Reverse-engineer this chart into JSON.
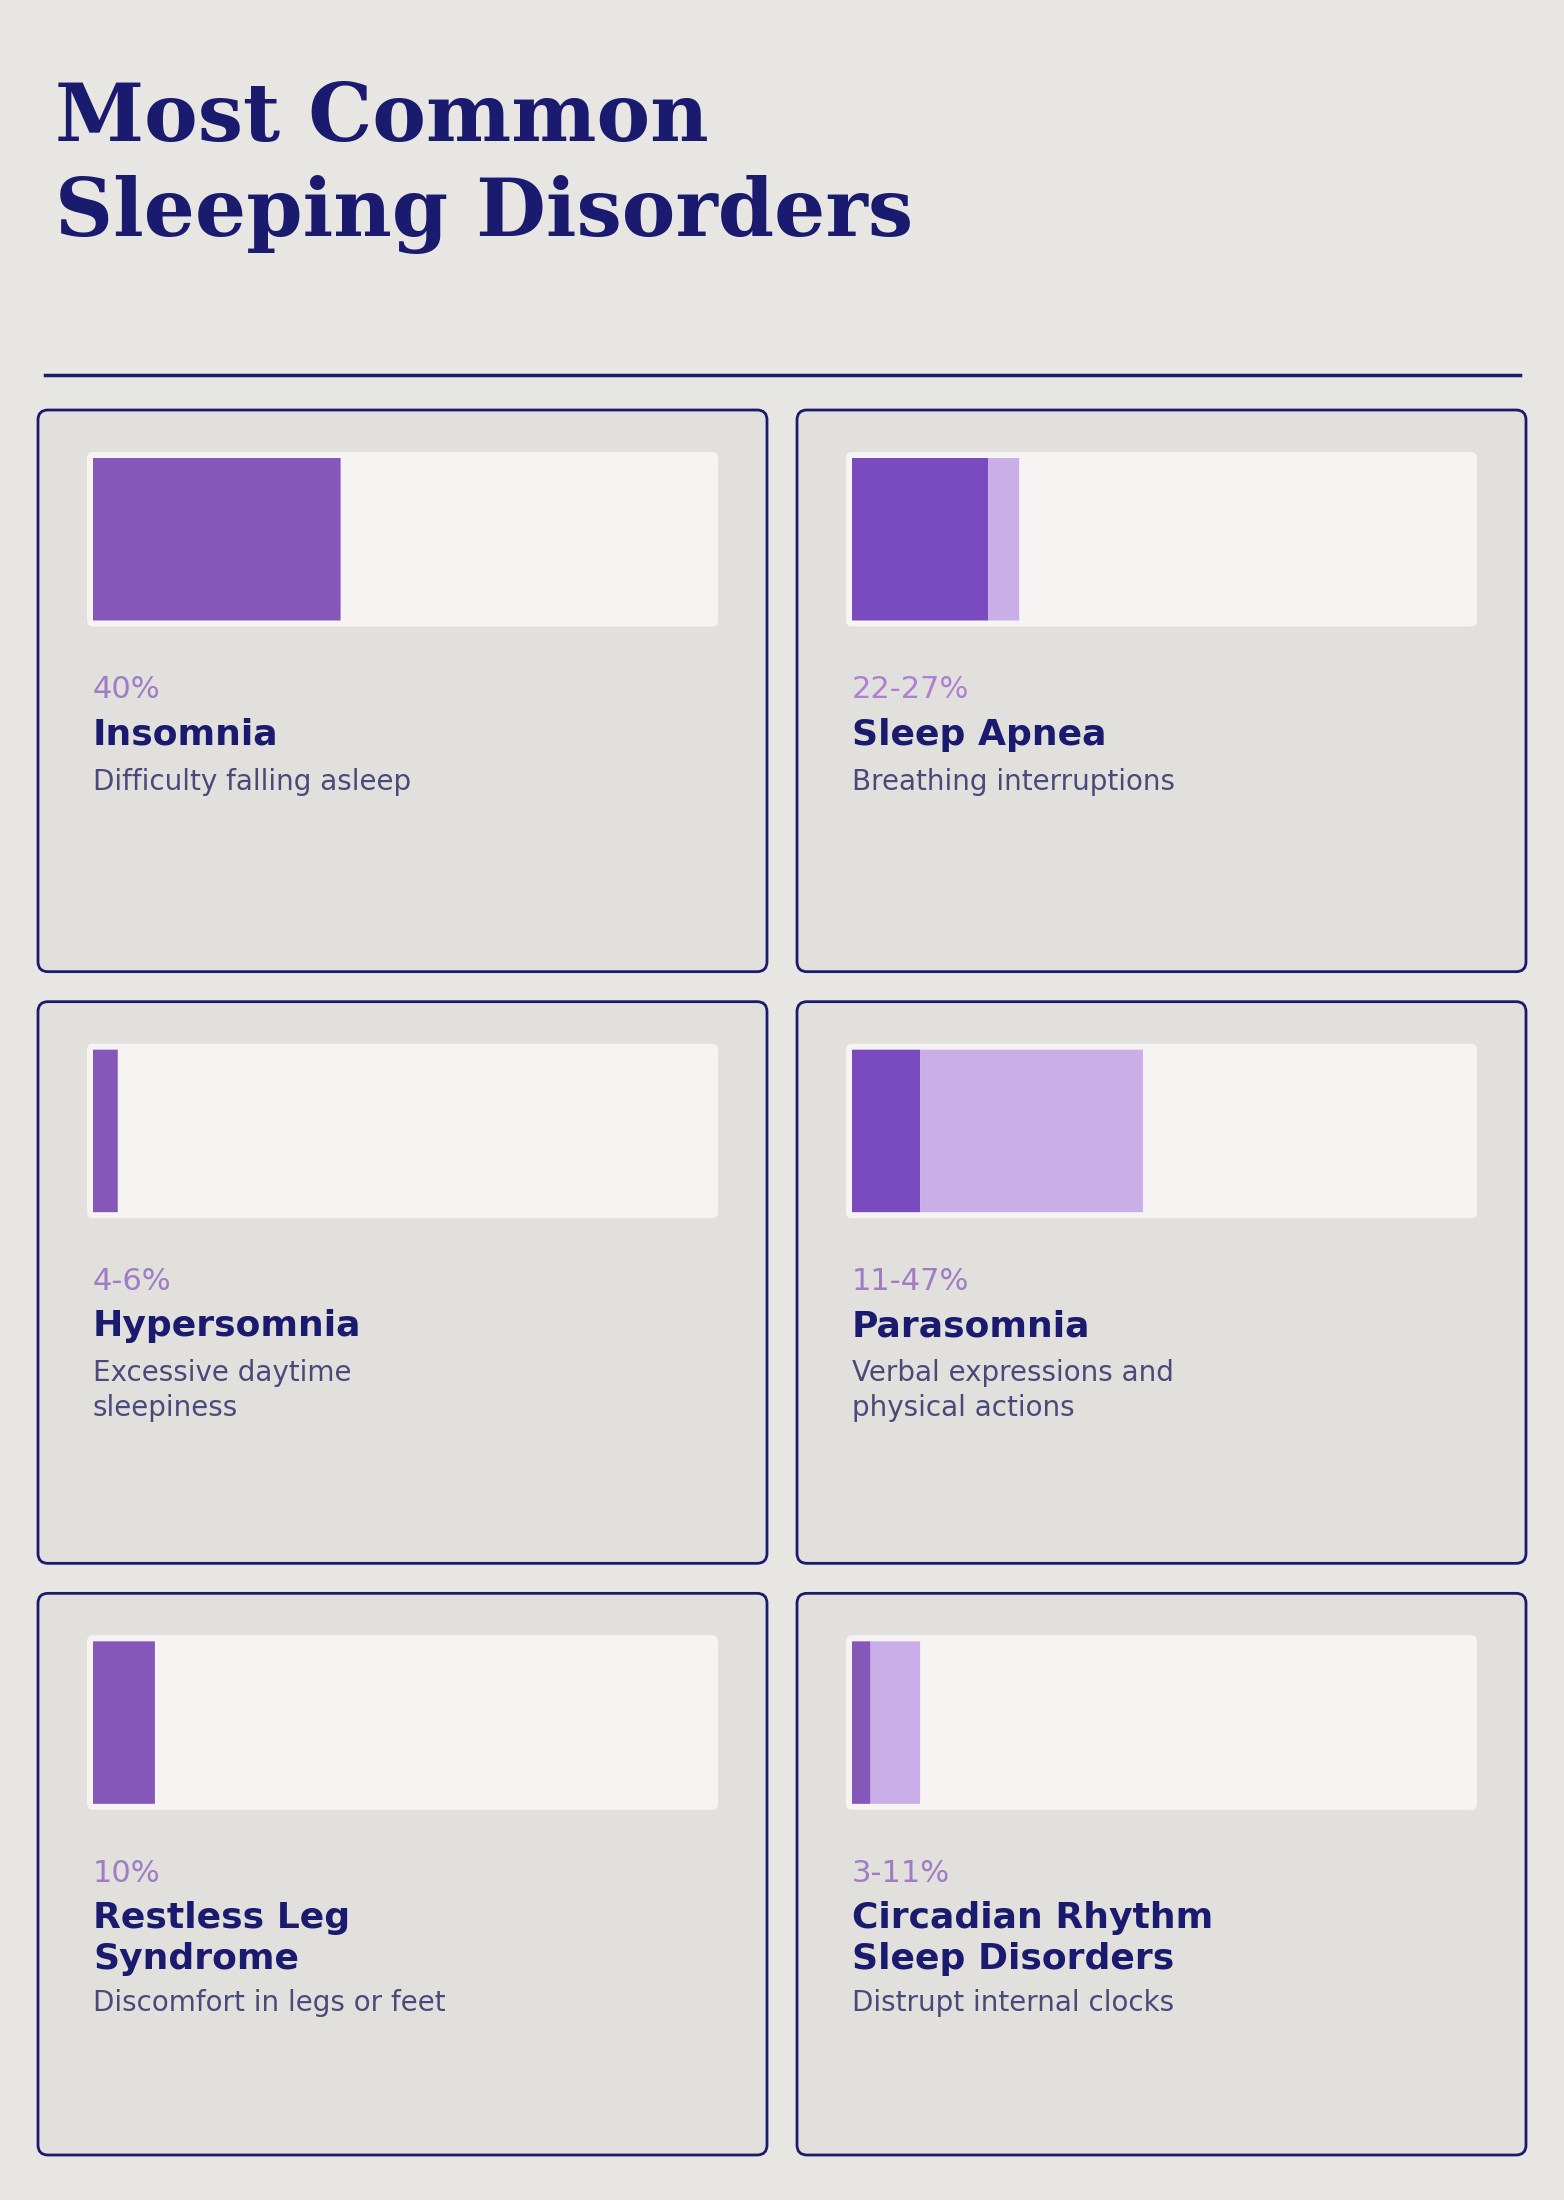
{
  "title_line1": "Most Common",
  "title_line2": "Sleeping Disorders",
  "title_color": "#1a1a6e",
  "title_fontsize": 58,
  "bg_color": "#e8e6e3",
  "card_bg": "#e2e0dd",
  "card_border_color": "#1a1a6e",
  "bar_bg_color": "#f5f4f2",
  "separator_color": "#1a1a6e",
  "disorders": [
    {
      "pct_label": "40%",
      "name": "Insomnia",
      "desc": "Difficulty falling asleep",
      "bar_min": 40,
      "bar_max": 40,
      "bar_color_primary": "#8557b8",
      "bar_color_secondary": null,
      "pct_color": "#a07cc5"
    },
    {
      "pct_label": "22-27%",
      "name": "Sleep Apnea",
      "desc": "Breathing interruptions",
      "bar_min": 22,
      "bar_max": 27,
      "bar_color_primary": "#7a4bbf",
      "bar_color_secondary": "#c9aee8",
      "pct_color": "#b07fd4"
    },
    {
      "pct_label": "4-6%",
      "name": "Hypersomnia",
      "desc": "Excessive daytime\nsleepiness",
      "bar_min": 4,
      "bar_max": 6,
      "bar_color_primary": "#8557b8",
      "bar_color_secondary": null,
      "pct_color": "#a07cc5"
    },
    {
      "pct_label": "11-47%",
      "name": "Parasomnia",
      "desc": "Verbal expressions and\nphysical actions",
      "bar_min": 11,
      "bar_max": 47,
      "bar_color_primary": "#7a4bbf",
      "bar_color_secondary": "#c9aee8",
      "pct_color": "#a07cc5"
    },
    {
      "pct_label": "10%",
      "name": "Restless Leg\nSyndrome",
      "desc": "Discomfort in legs or feet",
      "bar_min": 10,
      "bar_max": 10,
      "bar_color_primary": "#8557b8",
      "bar_color_secondary": null,
      "pct_color": "#a07cc5"
    },
    {
      "pct_label": "3-11%",
      "name": "Circadian Rhythm\nSleep Disorders",
      "desc": "Distrupt internal clocks",
      "bar_min": 3,
      "bar_max": 11,
      "bar_color_primary": "#8557b8",
      "bar_color_secondary": "#c9aee8",
      "pct_color": "#a07cc5"
    }
  ],
  "name_color": "#1a1a6e",
  "desc_color": "#4a4a7a",
  "name_fontsize": 26,
  "desc_fontsize": 20,
  "pct_fontsize": 22
}
